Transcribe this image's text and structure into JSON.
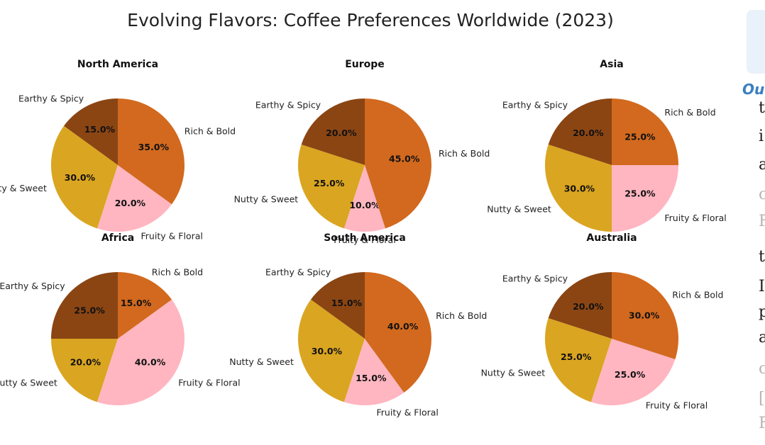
{
  "chart_data": {
    "type": "pie",
    "title": "Evolving Flavors: Coffee Preferences Worldwide (2023)",
    "labels": [
      "Earthy & Spicy",
      "Nutty & Sweet",
      "Fruity & Floral",
      "Rich & Bold"
    ],
    "colors": [
      "#8b4513",
      "#daa520",
      "#ffb6c1",
      "#d2691e"
    ],
    "charts": [
      {
        "title": "North America",
        "values": [
          15,
          30,
          20,
          35
        ]
      },
      {
        "title": "Europe",
        "values": [
          20,
          25,
          10,
          45
        ]
      },
      {
        "title": "Asia",
        "values": [
          20,
          30,
          25,
          25
        ]
      },
      {
        "title": "Africa",
        "values": [
          25,
          20,
          40,
          15
        ]
      },
      {
        "title": "South America",
        "values": [
          15,
          30,
          15,
          40
        ]
      },
      {
        "title": "Australia",
        "values": [
          20,
          25,
          25,
          30
        ]
      }
    ]
  },
  "side_panel": {
    "heading": "Ou",
    "lines": [
      {
        "text": "t",
        "faded": false
      },
      {
        "text": "i",
        "faded": false
      },
      {
        "text": "a",
        "faded": false
      },
      {
        "text": "c",
        "faded": true
      },
      {
        "text": "F",
        "faded": true
      },
      {
        "text": "t",
        "faded": false
      },
      {
        "text": "I",
        "faded": false
      },
      {
        "text": "p",
        "faded": false
      },
      {
        "text": "a",
        "faded": false
      },
      {
        "text": "c",
        "faded": true
      },
      {
        "text": "[",
        "faded": true
      },
      {
        "text": "F",
        "faded": true
      }
    ]
  }
}
